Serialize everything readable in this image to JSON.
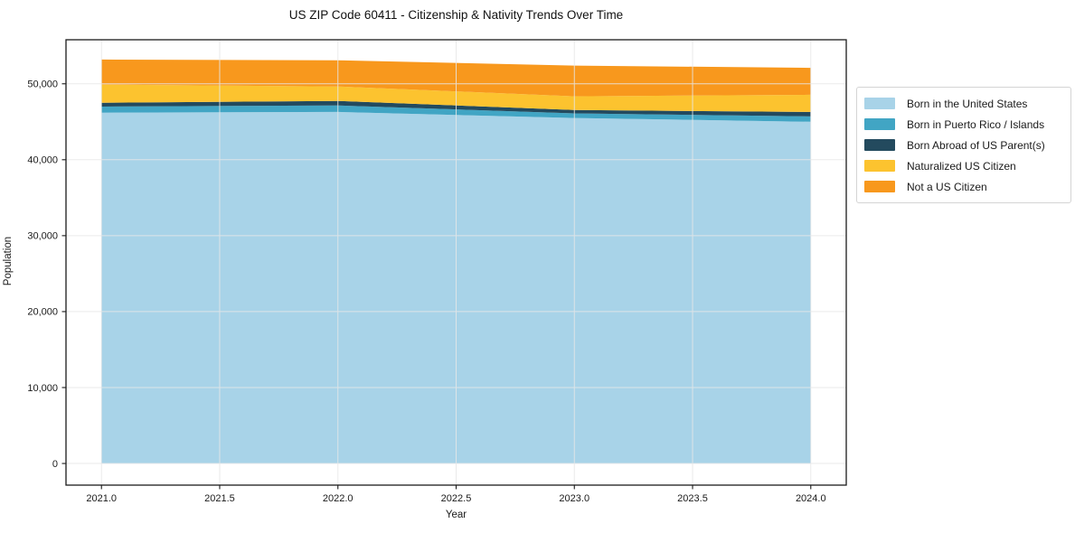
{
  "title": "US ZIP Code 60411 - Citizenship & Nativity Trends Over Time",
  "colors": {
    "background": "#ffffff",
    "text": "#1a1a1a",
    "spine": "#1b1b1b",
    "grid": "#e7e7e7",
    "legend_border": "#d4d4d4"
  },
  "chart_data": {
    "type": "area",
    "stacked": true,
    "title": "US ZIP Code 60411 - Citizenship & Nativity Trends Over Time",
    "xlabel": "Year",
    "ylabel": "Population",
    "x": [
      2021,
      2022,
      2023,
      2024
    ],
    "series": [
      {
        "name": "Born in the United States",
        "color": "#a8d3e8",
        "values": [
          46200,
          46300,
          45500,
          45000
        ]
      },
      {
        "name": "Born in Puerto Rico / Islands",
        "color": "#41a5c4",
        "values": [
          800,
          850,
          600,
          700
        ]
      },
      {
        "name": "Born Abroad of US Parent(s)",
        "color": "#234a5e",
        "values": [
          500,
          600,
          450,
          600
        ]
      },
      {
        "name": "Naturalized US Citizen",
        "color": "#fcc32f",
        "values": [
          2400,
          1900,
          1800,
          2250
        ]
      },
      {
        "name": "Not a US Citizen",
        "color": "#f8981d",
        "values": [
          3300,
          3450,
          4050,
          3550
        ]
      }
    ],
    "xlim": [
      2020.85,
      2024.15
    ],
    "ylim": [
      -2850,
      55800
    ],
    "x_ticks": {
      "values": [
        2021,
        2021.5,
        2022,
        2022.5,
        2023,
        2023.5,
        2024
      ],
      "labels": [
        "2021.0",
        "2021.5",
        "2022.0",
        "2022.5",
        "2023.0",
        "2023.5",
        "2024.0"
      ]
    },
    "y_ticks": {
      "values": [
        0,
        10000,
        20000,
        30000,
        40000,
        50000
      ],
      "labels": [
        "0",
        "10,000",
        "20,000",
        "30,000",
        "40,000",
        "50,000"
      ]
    },
    "grid": true,
    "legend_position": "right"
  }
}
